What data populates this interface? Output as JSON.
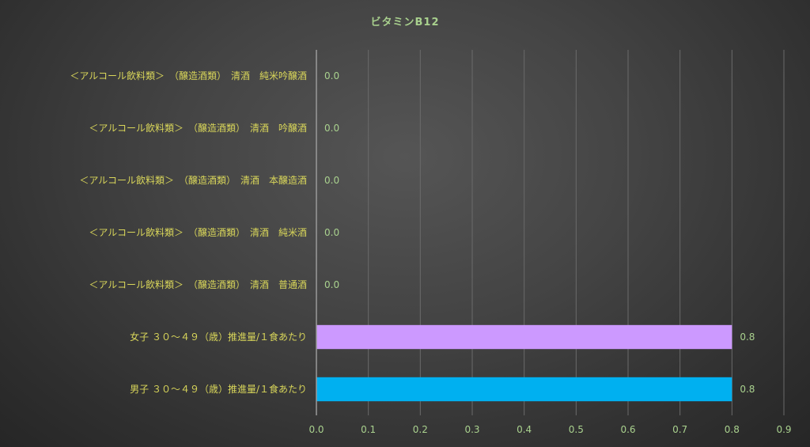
{
  "chart_data": {
    "type": "bar",
    "orientation": "horizontal",
    "title": "ビタミンB12",
    "categories": [
      "＜アルコール飲料類＞　（醸造酒類）　清酒　純米吟醸酒",
      "＜アルコール飲料類＞　（醸造酒類）　清酒　吟醸酒",
      "＜アルコール飲料類＞　（醸造酒類）　清酒　本醸造酒",
      "＜アルコール飲料類＞　（醸造酒類）　清酒　純米酒",
      "＜アルコール飲料類＞　（醸造酒類）　清酒　普通酒",
      "女子 ３０～４９（歳）推進量/１食あたり",
      "男子 ３０～４９（歳）推進量/１食あたり"
    ],
    "values": [
      0.0,
      0.0,
      0.0,
      0.0,
      0.0,
      0.8,
      0.8
    ],
    "data_labels": [
      "0.0",
      "0.0",
      "0.0",
      "0.0",
      "0.0",
      "0.8",
      "0.8"
    ],
    "bar_colors": [
      "#cc99ff",
      "#cc99ff",
      "#cc99ff",
      "#cc99ff",
      "#cc99ff",
      "#cc99ff",
      "#00b0f0"
    ],
    "xlim": [
      0,
      0.9
    ],
    "xticks": [
      0.0,
      0.1,
      0.2,
      0.3,
      0.4,
      0.5,
      0.6,
      0.7,
      0.8,
      0.9
    ],
    "xtick_labels": [
      "0.0",
      "0.1",
      "0.2",
      "0.3",
      "0.4",
      "0.5",
      "0.6",
      "0.7",
      "0.8",
      "0.9"
    ],
    "grid": true,
    "legend": "none",
    "xlabel": "",
    "ylabel": ""
  }
}
